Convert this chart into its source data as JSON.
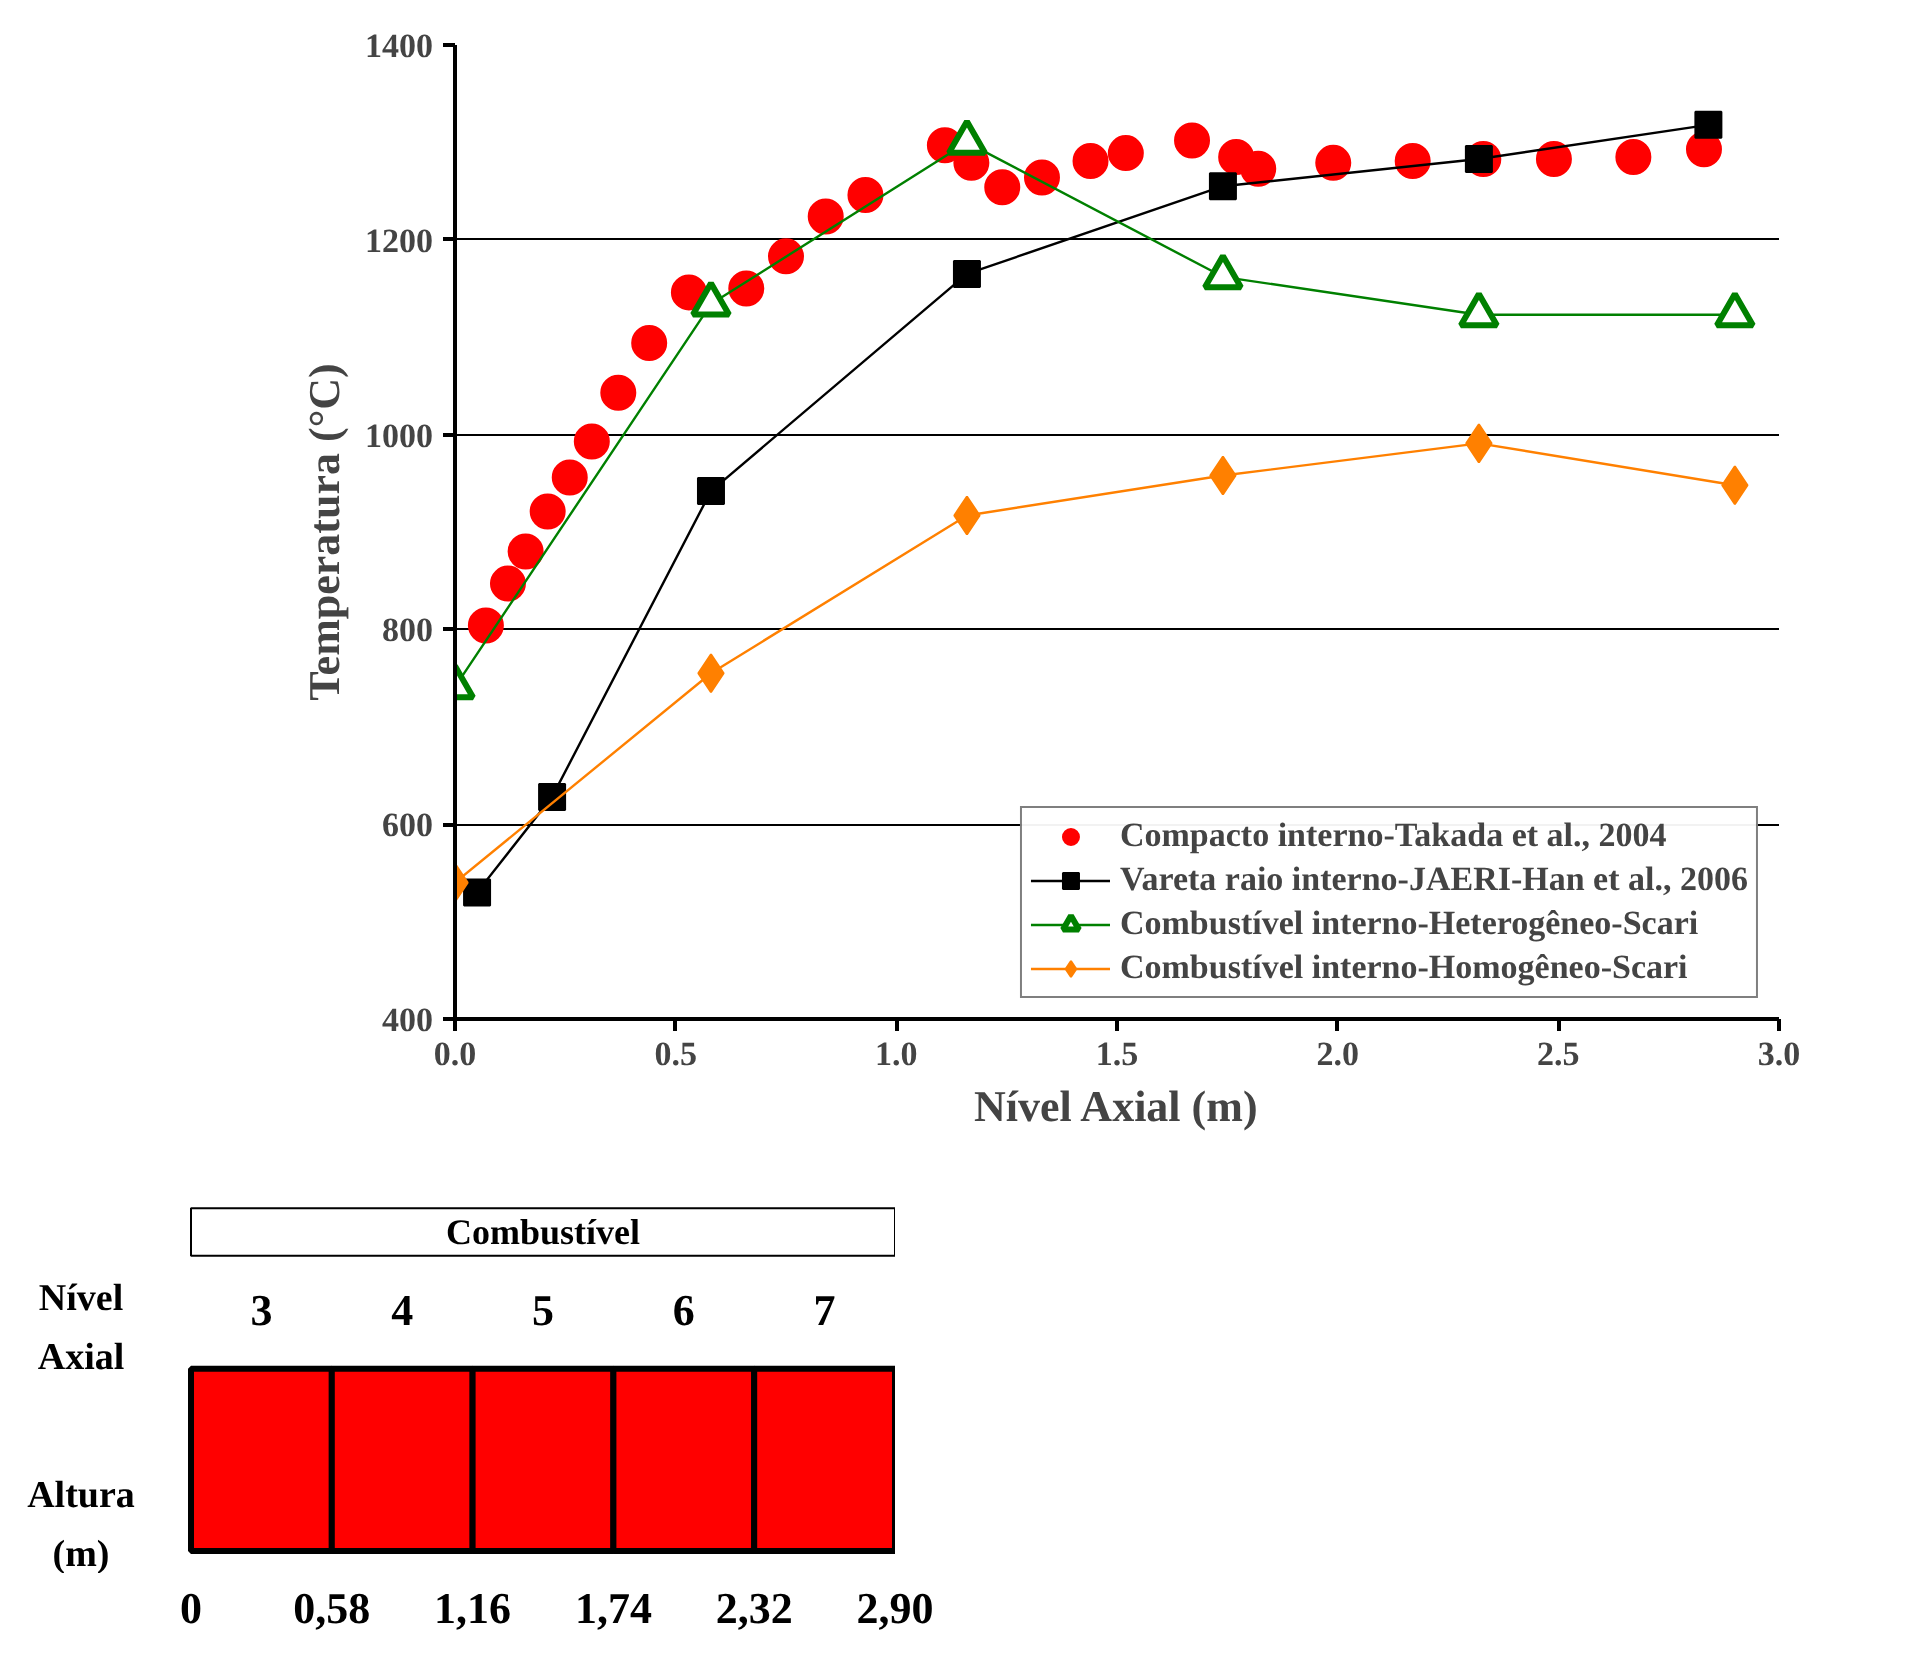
{
  "chart_data": [
    {
      "type": "scatter",
      "xlabel": "Nível Axial (m)",
      "ylabel": "Temperatura (°C)",
      "xlim": [
        0,
        3
      ],
      "ylim": [
        400,
        1400
      ],
      "xticks": [
        {
          "value": 0,
          "label": "0.0"
        },
        {
          "value": 0.5,
          "label": "0.5"
        },
        {
          "value": 1,
          "label": "1.0"
        },
        {
          "value": 1.5,
          "label": "1.5"
        },
        {
          "value": 2,
          "label": "2.0"
        },
        {
          "value": 2.5,
          "label": "2.5"
        },
        {
          "value": 3,
          "label": "3.0"
        }
      ],
      "yticks": [
        400,
        600,
        800,
        1000,
        1200,
        1400
      ],
      "grid": "y",
      "legend": "bottom right",
      "series": [
        {
          "name": "Compacto interno-Takada et al., 2004",
          "type": "scatter",
          "marker": "circle",
          "color": "#ff0000",
          "x": [
            0.07,
            0.12,
            0.16,
            0.21,
            0.26,
            0.31,
            0.37,
            0.44,
            0.53,
            0.66,
            0.75,
            0.84,
            0.93,
            1.11,
            1.17,
            1.24,
            1.33,
            1.44,
            1.52,
            1.67,
            1.77,
            1.82,
            1.99,
            2.17,
            2.33,
            2.49,
            2.67,
            2.83
          ],
          "values": [
            804,
            847,
            880,
            921,
            956,
            993,
            1043,
            1094,
            1146,
            1150,
            1183,
            1224,
            1246,
            1297,
            1279,
            1254,
            1264,
            1281,
            1289,
            1302,
            1285,
            1273,
            1279,
            1281,
            1283,
            1283,
            1285,
            1293
          ]
        },
        {
          "name": "Vareta raio interno-JAERI-Han et al., 2006",
          "type": "line",
          "marker": "square",
          "color": "#000000",
          "x": [
            0.05,
            0.22,
            0.58,
            1.16,
            1.74,
            2.32,
            2.84
          ],
          "values": [
            530,
            628,
            942,
            1165,
            1255,
            1283,
            1318
          ]
        },
        {
          "name": "Combustível interno-Heterogêneo-Scari",
          "type": "line",
          "marker": "triangle",
          "color": "#008000",
          "x": [
            0,
            0.58,
            1.16,
            1.74,
            2.32,
            2.9
          ],
          "values": [
            741,
            1134,
            1300,
            1162,
            1123,
            1123
          ]
        },
        {
          "name": "Combustível interno-Homogêneo-Scari",
          "type": "line",
          "marker": "diamond",
          "color": "#ff8000",
          "x": [
            0,
            0.58,
            1.16,
            1.74,
            2.32,
            2.9
          ],
          "values": [
            540,
            755,
            917,
            958,
            991,
            948
          ]
        }
      ]
    },
    {
      "type": "bar",
      "orientation": "horizontal",
      "stacked": true,
      "tick_labels": "x",
      "title": "Combustível",
      "categories": [
        null
      ],
      "annotations": [
        "Nível\nAxial",
        "Altura\n(m)"
      ],
      "xlim": [
        0,
        2.9
      ],
      "series": [
        {
          "name": "3",
          "color": "#ff0000",
          "values": [
            0.58
          ]
        },
        {
          "name": "4",
          "color": "#ff0000",
          "values": [
            0.58
          ]
        },
        {
          "name": "5",
          "color": "#ff0000",
          "values": [
            0.58
          ]
        },
        {
          "name": "6",
          "color": "#ff0000",
          "values": [
            0.58
          ]
        },
        {
          "name": "7",
          "color": "#ff0000",
          "values": [
            0.58
          ]
        }
      ],
      "xticks": [
        {
          "value": 0,
          "label": "0"
        },
        {
          "value": 0.58,
          "label": "0,58"
        },
        {
          "value": 1.16,
          "label": "1,16"
        },
        {
          "value": 1.74,
          "label": "1,74"
        },
        {
          "value": 2.32,
          "label": "2,32"
        },
        {
          "value": 2.9,
          "label": "2,90"
        }
      ]
    }
  ]
}
